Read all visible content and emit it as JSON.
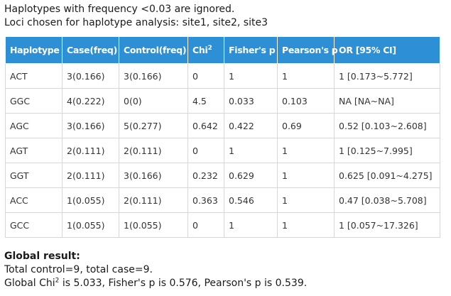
{
  "notes": {
    "line1": "Haplotypes with frequency <0.03 are ignored.",
    "line2": "Loci chosen for haplotype analysis: site1, site2, site3"
  },
  "table": {
    "headers": {
      "haplotype": "Haplotype",
      "case": "Case(freq)",
      "control": "Control(freq)",
      "chi": "Chi",
      "chi_sup": "2",
      "fisher": "Fisher's p",
      "pearson": "Pearson's p",
      "or": "OR [95% CI]"
    },
    "rows": [
      {
        "haplotype": "ACT",
        "case": "3(0.166)",
        "control": "3(0.166)",
        "chi": "0",
        "fisher": "1",
        "pearson": "1",
        "or": "1 [0.173~5.772]"
      },
      {
        "haplotype": "GGC",
        "case": "4(0.222)",
        "control": "0(0)",
        "chi": "4.5",
        "fisher": "0.033",
        "pearson": "0.103",
        "or": "NA [NA~NA]"
      },
      {
        "haplotype": "AGC",
        "case": "3(0.166)",
        "control": "5(0.277)",
        "chi": "0.642",
        "fisher": "0.422",
        "pearson": "0.69",
        "or": "0.52 [0.103~2.608]"
      },
      {
        "haplotype": "AGT",
        "case": "2(0.111)",
        "control": "2(0.111)",
        "chi": "0",
        "fisher": "1",
        "pearson": "1",
        "or": "1 [0.125~7.995]"
      },
      {
        "haplotype": "GGT",
        "case": "2(0.111)",
        "control": "3(0.166)",
        "chi": "0.232",
        "fisher": "0.629",
        "pearson": "1",
        "or": "0.625 [0.091~4.275]"
      },
      {
        "haplotype": "ACC",
        "case": "1(0.055)",
        "control": "2(0.111)",
        "chi": "0.363",
        "fisher": "0.546",
        "pearson": "1",
        "or": "0.47 [0.038~5.708]"
      },
      {
        "haplotype": "GCC",
        "case": "1(0.055)",
        "control": "1(0.055)",
        "chi": "0",
        "fisher": "1",
        "pearson": "1",
        "or": "1 [0.057~17.326]"
      }
    ]
  },
  "global": {
    "title": "Global result:",
    "line1": "Total control=9, total case=9.",
    "line2_prefix": "Global Chi",
    "line2_sup": "2",
    "line2_suffix": " is 5.033, Fisher's p is 0.576, Pearson's p is 0.539."
  },
  "colors": {
    "header_bg": "#2d8fd6",
    "header_text": "#ffffff",
    "cell_border": "#d7d7d7"
  }
}
